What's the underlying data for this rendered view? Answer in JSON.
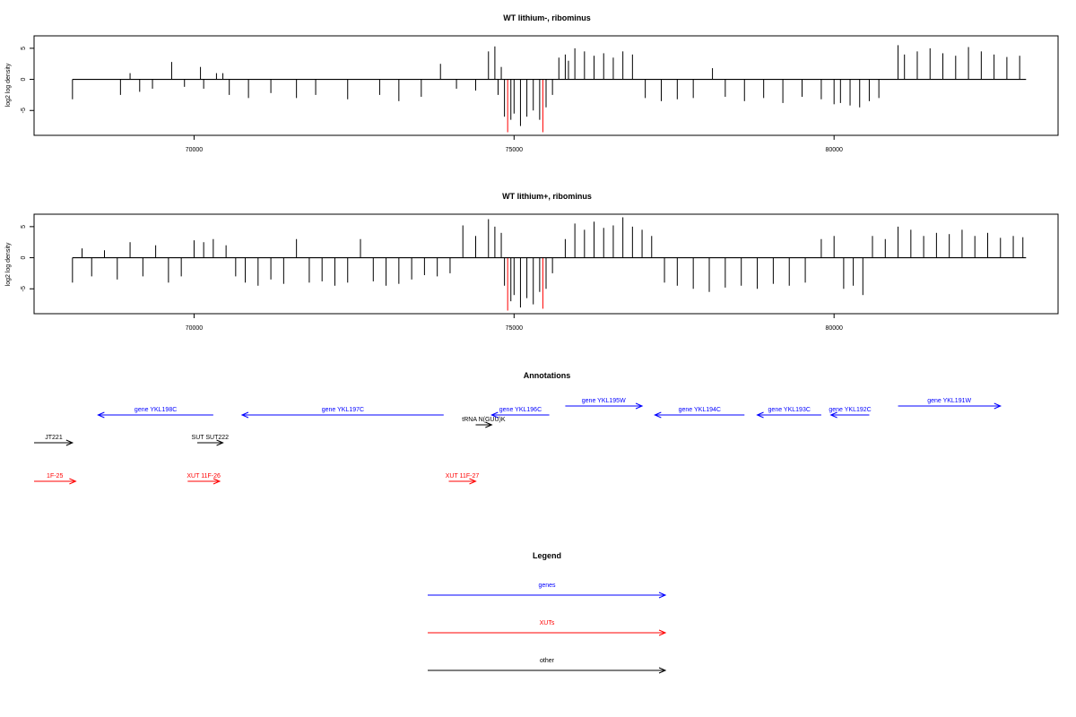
{
  "colors": {
    "gene": "#0000ff",
    "xut": "#ff0000",
    "other": "#000000",
    "highlight": "#ff0000",
    "bar": "#000000"
  },
  "chart_data": [
    {
      "type": "bar",
      "title": "WT lithium-, ribominus",
      "ylabel": "log2 log density",
      "xlim": [
        67500,
        83500
      ],
      "ylim": [
        -9,
        7
      ],
      "x_ticks": [
        70000,
        75000,
        80000
      ],
      "x_tick_labels": [
        "70000",
        "75000",
        "80000"
      ],
      "y_ticks": [
        5,
        0,
        -5
      ],
      "y_tick_labels": [
        "5",
        "0",
        "-5"
      ],
      "baseline_x_range": [
        68100,
        83000
      ],
      "grid": false,
      "x": [
        68100,
        68850,
        69000,
        69150,
        69350,
        69650,
        69850,
        70100,
        70150,
        70350,
        70450,
        70550,
        70850,
        71200,
        71600,
        71900,
        72400,
        72900,
        73200,
        73550,
        73850,
        74100,
        74400,
        74600,
        74700,
        74750,
        74800,
        74850,
        74900,
        74950,
        75000,
        75100,
        75200,
        75300,
        75400,
        75450,
        75500,
        75600,
        75700,
        75800,
        75850,
        75950,
        76100,
        76250,
        76400,
        76550,
        76700,
        76850,
        77050,
        77300,
        77550,
        77800,
        78100,
        78300,
        78600,
        78900,
        79200,
        79500,
        79800,
        80000,
        80100,
        80250,
        80400,
        80550,
        80700,
        81000,
        81100,
        81300,
        81500,
        81700,
        81900,
        82100,
        82300,
        82500,
        82700,
        82900
      ],
      "values": [
        -3.2,
        -2.5,
        1.0,
        -2.0,
        -1.5,
        2.8,
        -1.2,
        2.0,
        -1.5,
        1.0,
        1.0,
        -2.5,
        -3.0,
        -2.2,
        -3.0,
        -2.5,
        -3.2,
        -2.5,
        -3.5,
        -2.8,
        2.5,
        -1.5,
        -1.8,
        4.5,
        5.3,
        -2.5,
        2.0,
        -6.0,
        -8.5,
        -6.5,
        -5.5,
        -7.5,
        -6.0,
        -5.0,
        -6.5,
        -8.5,
        -4.5,
        -2.5,
        3.5,
        4.0,
        3.0,
        5.0,
        4.5,
        3.8,
        4.2,
        3.5,
        4.5,
        4.0,
        -3.0,
        -3.5,
        -3.2,
        -3.0,
        1.8,
        -2.8,
        -3.5,
        -3.0,
        -3.8,
        -2.8,
        -3.2,
        -4.0,
        -3.8,
        -4.2,
        -4.5,
        -3.5,
        -3.0,
        5.5,
        4.0,
        4.5,
        5.0,
        4.2,
        3.8,
        5.2,
        4.5,
        4.0,
        3.6,
        3.8
      ],
      "highlight_x": [
        74900,
        75450
      ]
    },
    {
      "type": "bar",
      "title": "WT lithium+, ribominus",
      "ylabel": "log2 log density",
      "xlim": [
        67500,
        83500
      ],
      "ylim": [
        -9,
        7
      ],
      "x_ticks": [
        70000,
        75000,
        80000
      ],
      "x_tick_labels": [
        "70000",
        "75000",
        "80000"
      ],
      "y_ticks": [
        5,
        0,
        -5
      ],
      "y_tick_labels": [
        "5",
        "0",
        "-5"
      ],
      "baseline_x_range": [
        68100,
        83000
      ],
      "grid": false,
      "x": [
        68100,
        68250,
        68400,
        68600,
        68800,
        69000,
        69200,
        69400,
        69600,
        69800,
        70000,
        70150,
        70300,
        70500,
        70650,
        70800,
        71000,
        71200,
        71400,
        71600,
        71800,
        72000,
        72200,
        72400,
        72600,
        72800,
        73000,
        73200,
        73400,
        73600,
        73800,
        74000,
        74200,
        74400,
        74600,
        74700,
        74800,
        74850,
        74900,
        74950,
        75000,
        75100,
        75200,
        75300,
        75400,
        75450,
        75500,
        75600,
        75800,
        75950,
        76100,
        76250,
        76400,
        76550,
        76700,
        76850,
        77000,
        77150,
        77350,
        77550,
        77800,
        78050,
        78300,
        78550,
        78800,
        79050,
        79300,
        79550,
        79800,
        80000,
        80150,
        80300,
        80450,
        80600,
        80800,
        81000,
        81200,
        81400,
        81600,
        81800,
        82000,
        82200,
        82400,
        82600,
        82800,
        82950
      ],
      "values": [
        -4.0,
        1.5,
        -3.0,
        1.2,
        -3.5,
        2.5,
        -3.0,
        2.0,
        -4.0,
        -3.0,
        2.8,
        2.5,
        3.0,
        2.0,
        -3.0,
        -4.0,
        -4.5,
        -3.5,
        -4.2,
        3.0,
        -4.0,
        -3.8,
        -4.5,
        -4.0,
        3.0,
        -3.8,
        -4.5,
        -4.2,
        -3.5,
        -2.8,
        -3.0,
        -2.5,
        5.2,
        3.5,
        6.2,
        5.0,
        4.0,
        -4.5,
        -8.5,
        -7.0,
        -6.0,
        -8.0,
        -6.5,
        -7.5,
        -5.5,
        -8.2,
        -5.0,
        -2.5,
        3.0,
        5.5,
        4.5,
        5.8,
        4.8,
        5.2,
        6.5,
        5.0,
        4.5,
        3.5,
        -4.0,
        -4.5,
        -5.0,
        -5.5,
        -4.8,
        -4.5,
        -5.0,
        -4.2,
        -4.5,
        -4.0,
        3.0,
        3.5,
        -5.0,
        -4.5,
        -6.0,
        3.5,
        3.0,
        5.0,
        4.5,
        3.5,
        4.0,
        3.8,
        4.5,
        3.5,
        4.0,
        3.2,
        3.5,
        3.3
      ],
      "highlight_x": [
        74900,
        75450
      ]
    }
  ],
  "annotations": {
    "title": "Annotations",
    "items": [
      {
        "label": "gene YKL198C",
        "kind": "gene",
        "start": 68500,
        "end": 70300,
        "dir": "left",
        "row": 1
      },
      {
        "label": "gene YKL197C",
        "kind": "gene",
        "start": 70750,
        "end": 73900,
        "dir": "left",
        "row": 1
      },
      {
        "label": "tRNA N(GUU)K",
        "kind": "other",
        "start": 74400,
        "end": 74650,
        "dir": "right",
        "row": 2
      },
      {
        "label": "gene YKL196C",
        "kind": "gene",
        "start": 74650,
        "end": 75550,
        "dir": "left",
        "row": 1
      },
      {
        "label": "gene YKL195W",
        "kind": "gene",
        "start": 75800,
        "end": 77000,
        "dir": "right",
        "row": 0
      },
      {
        "label": "gene YKL194C",
        "kind": "gene",
        "start": 77200,
        "end": 78600,
        "dir": "left",
        "row": 1
      },
      {
        "label": "gene YKL193C",
        "kind": "gene",
        "start": 78800,
        "end": 79800,
        "dir": "left",
        "row": 1
      },
      {
        "label": "gene YKL192C",
        "kind": "gene",
        "start": 79950,
        "end": 80550,
        "dir": "left",
        "row": 1
      },
      {
        "label": "gene YKL191W",
        "kind": "gene",
        "start": 81000,
        "end": 82600,
        "dir": "right",
        "row": 0
      },
      {
        "label": "JT221",
        "kind": "other",
        "start": 67500,
        "end": 68100,
        "dir": "right",
        "row": 3
      },
      {
        "label": "SUT SUT222",
        "kind": "other",
        "start": 70050,
        "end": 70450,
        "dir": "right",
        "row": 3
      },
      {
        "label": "1F-25",
        "kind": "xut",
        "start": 67500,
        "end": 68150,
        "dir": "right",
        "row": 4
      },
      {
        "label": "XUT 11F-26",
        "kind": "xut",
        "start": 69900,
        "end": 70400,
        "dir": "right",
        "row": 4
      },
      {
        "label": "XUT 11F-27",
        "kind": "xut",
        "start": 73980,
        "end": 74400,
        "dir": "right",
        "row": 4
      }
    ]
  },
  "legend": {
    "title": "Legend",
    "items": [
      {
        "label": "genes",
        "kind": "gene"
      },
      {
        "label": "XUTs",
        "kind": "xut"
      },
      {
        "label": "other",
        "kind": "other"
      }
    ]
  }
}
